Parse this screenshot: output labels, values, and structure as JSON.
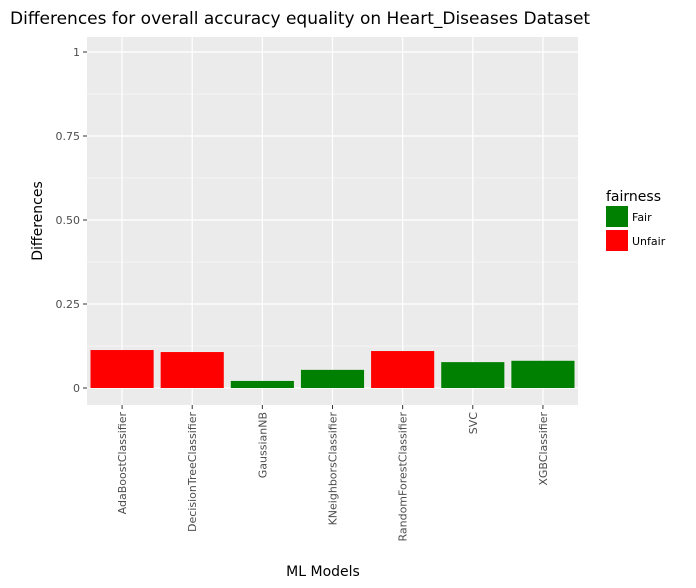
{
  "chart_data": {
    "type": "bar",
    "title": "Differences for overall accuracy equality on Heart_Diseases Dataset",
    "xlabel": "ML Models",
    "ylabel": "Differences",
    "ylim": [
      0,
      1
    ],
    "yticks": [
      0,
      0.25,
      0.5,
      0.75,
      1
    ],
    "ytick_labels": [
      "0",
      "0.25",
      "0.50",
      "0.75",
      "1"
    ],
    "grid": true,
    "categories": [
      "AdaBoostClassifier",
      "DecisionTreeClassifier",
      "GaussianNB",
      "KNeighborsClassifier",
      "RandomForestClassifier",
      "SVC",
      "XGBClassifier"
    ],
    "values": [
      0.113,
      0.107,
      0.021,
      0.054,
      0.11,
      0.077,
      0.081
    ],
    "fairness": [
      "Unfair",
      "Unfair",
      "Fair",
      "Fair",
      "Unfair",
      "Fair",
      "Fair"
    ],
    "legend": {
      "title": "fairness",
      "position": "right",
      "entries": [
        {
          "label": "Fair",
          "color": "#008000"
        },
        {
          "label": "Unfair",
          "color": "#ff0000"
        }
      ]
    }
  }
}
